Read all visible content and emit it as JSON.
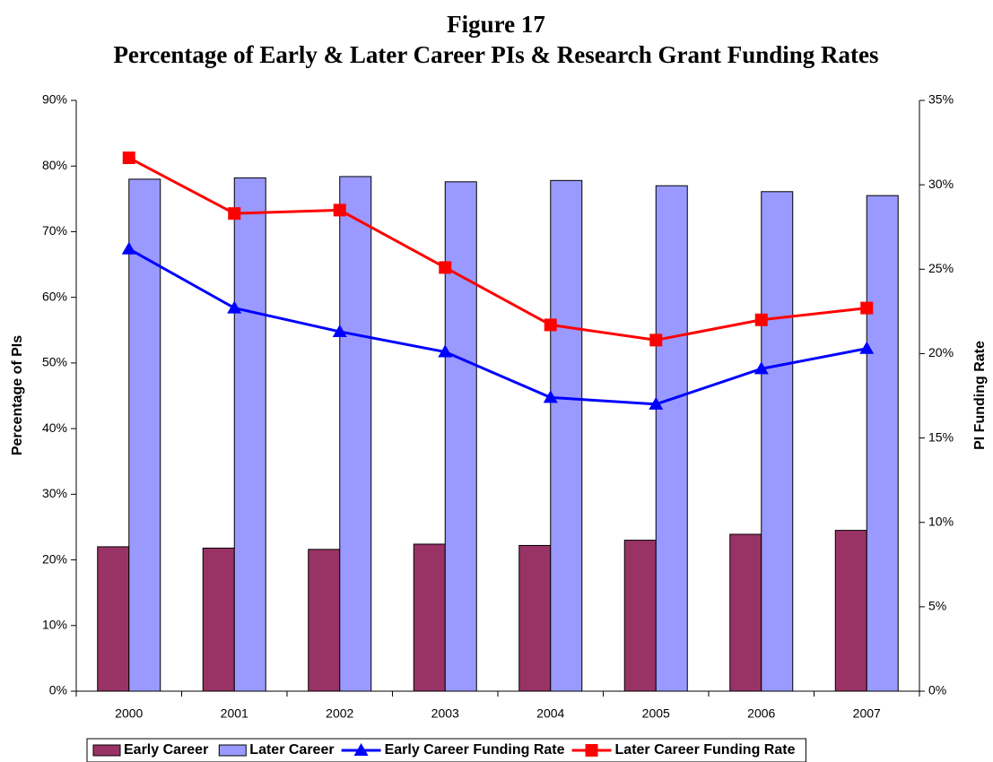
{
  "chart_data": {
    "type": "bar",
    "title": "Figure 17",
    "subtitle": "Percentage of Early & Later Career PIs  & Research Grant Funding Rates",
    "y_label": "Percentage of PIs",
    "y2_label": "PI Funding Rate",
    "categories": [
      "2000",
      "2001",
      "2002",
      "2003",
      "2004",
      "2005",
      "2006",
      "2007"
    ],
    "series": [
      {
        "name": "Early Career",
        "type": "bar",
        "color": "#993366",
        "values": [
          22,
          21.8,
          21.6,
          22.4,
          22.2,
          23,
          23.9,
          24.5
        ]
      },
      {
        "name": "Later Career",
        "type": "bar",
        "color": "#9999ff",
        "values": [
          78,
          78.2,
          78.4,
          77.6,
          77.8,
          77,
          76.1,
          75.5
        ]
      },
      {
        "name": "Early Career Funding Rate",
        "type": "line",
        "marker": "triangle",
        "axis": "y2",
        "color": "#0000ff",
        "values": [
          26.2,
          22.7,
          21.3,
          20.1,
          17.4,
          17.0,
          19.1,
          20.3
        ]
      },
      {
        "name": "Later Career Funding Rate",
        "type": "line",
        "marker": "square",
        "axis": "y2",
        "color": "#ff0000",
        "values": [
          31.6,
          28.3,
          28.5,
          25.1,
          21.7,
          20.8,
          22.0,
          22.7
        ]
      }
    ],
    "ylim": [
      0,
      90
    ],
    "yticks": [
      {
        "value": 0,
        "label": "0%"
      },
      {
        "value": 10,
        "label": "10%"
      },
      {
        "value": 20,
        "label": "20%"
      },
      {
        "value": 30,
        "label": "30%"
      },
      {
        "value": 40,
        "label": "40%"
      },
      {
        "value": 50,
        "label": "50%"
      },
      {
        "value": 60,
        "label": "60%"
      },
      {
        "value": 70,
        "label": "70%"
      },
      {
        "value": 80,
        "label": "80%"
      },
      {
        "value": 90,
        "label": "90%"
      }
    ],
    "y2lim": [
      0,
      35
    ],
    "y2ticks": [
      {
        "value": 0,
        "label": "0%"
      },
      {
        "value": 5,
        "label": "5%"
      },
      {
        "value": 10,
        "label": "10%"
      },
      {
        "value": 15,
        "label": "15%"
      },
      {
        "value": 20,
        "label": "20%"
      },
      {
        "value": 25,
        "label": "25%"
      },
      {
        "value": 30,
        "label": "30%"
      },
      {
        "value": 35,
        "label": "35%"
      }
    ],
    "legend": "bottom"
  }
}
